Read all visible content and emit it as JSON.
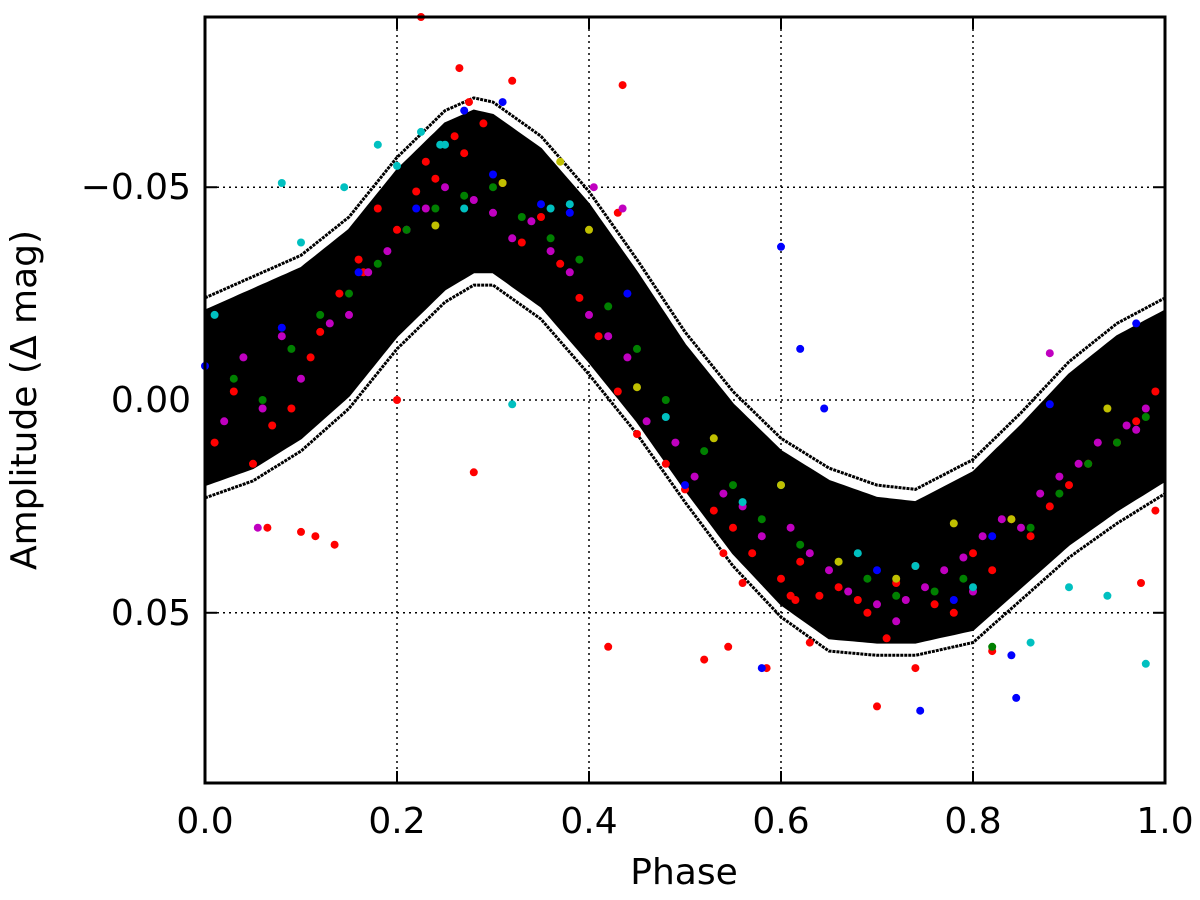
{
  "chart_data": {
    "type": "scatter",
    "title": "",
    "xlabel": "Phase",
    "ylabel": "Amplitude (Δ mag)",
    "xlim": [
      0.0,
      1.0
    ],
    "ylim": [
      0.09,
      -0.09
    ],
    "y_inverted": true,
    "grid": true,
    "grid_style": "dotted",
    "x_ticks": [
      0.0,
      0.2,
      0.4,
      0.6,
      0.8,
      1.0
    ],
    "x_tick_labels": [
      "0.0",
      "0.2",
      "0.4",
      "0.6",
      "0.8",
      "1.0"
    ],
    "y_ticks": [
      -0.05,
      0.0,
      0.05
    ],
    "y_tick_labels": [
      "−0.05",
      "0.00",
      "0.05"
    ],
    "model_band": {
      "description_color": "#000000",
      "center_curve": {
        "x": [
          0.0,
          0.05,
          0.1,
          0.15,
          0.2,
          0.25,
          0.28,
          0.3,
          0.35,
          0.4,
          0.45,
          0.5,
          0.55,
          0.6,
          0.65,
          0.7,
          0.74,
          0.8,
          0.85,
          0.9,
          0.95,
          1.0
        ],
        "y": [
          0.003,
          -0.002,
          -0.009,
          -0.019,
          -0.033,
          -0.045,
          -0.049,
          -0.048,
          -0.041,
          -0.029,
          -0.013,
          0.004,
          0.019,
          0.031,
          0.039,
          0.044,
          0.044,
          0.036,
          0.026,
          0.016,
          0.008,
          0.002
        ]
      },
      "half_width": 0.012,
      "outer_envelope_upper": {
        "x": [
          0.0,
          0.05,
          0.1,
          0.15,
          0.2,
          0.25,
          0.28,
          0.3,
          0.35,
          0.4,
          0.45,
          0.5,
          0.55,
          0.6,
          0.65,
          0.7,
          0.74,
          0.8,
          0.85,
          0.9,
          0.95,
          1.0
        ],
        "y": [
          -0.021,
          -0.026,
          -0.031,
          -0.04,
          -0.054,
          -0.065,
          -0.068,
          -0.067,
          -0.059,
          -0.046,
          -0.03,
          -0.013,
          0.001,
          0.012,
          0.019,
          0.023,
          0.024,
          0.017,
          0.006,
          -0.006,
          -0.015,
          -0.021
        ]
      },
      "outer_envelope_lower": {
        "x": [
          0.0,
          0.05,
          0.1,
          0.15,
          0.2,
          0.25,
          0.28,
          0.3,
          0.35,
          0.4,
          0.45,
          0.5,
          0.55,
          0.6,
          0.65,
          0.7,
          0.74,
          0.8,
          0.85,
          0.9,
          0.95,
          1.0
        ],
        "y": [
          0.02,
          0.016,
          0.009,
          -0.001,
          -0.015,
          -0.026,
          -0.03,
          -0.03,
          -0.022,
          -0.009,
          0.005,
          0.021,
          0.036,
          0.048,
          0.056,
          0.057,
          0.057,
          0.054,
          0.044,
          0.034,
          0.026,
          0.019
        ]
      }
    },
    "series": [
      {
        "color": "#ff0000",
        "x": [
          0.01,
          0.03,
          0.05,
          0.07,
          0.09,
          0.11,
          0.12,
          0.14,
          0.16,
          0.18,
          0.2,
          0.22,
          0.23,
          0.24,
          0.26,
          0.27,
          0.29,
          0.31,
          0.33,
          0.35,
          0.37,
          0.39,
          0.41,
          0.43,
          0.45,
          0.48,
          0.5,
          0.53,
          0.55,
          0.57,
          0.6,
          0.62,
          0.64,
          0.66,
          0.68,
          0.69,
          0.71,
          0.72,
          0.74,
          0.76,
          0.78,
          0.8,
          0.82,
          0.84,
          0.86,
          0.88,
          0.9,
          0.92,
          0.95,
          0.97,
          0.99,
          0.065,
          0.1,
          0.115,
          0.135,
          0.165,
          0.225,
          0.265,
          0.275,
          0.32,
          0.435,
          0.43,
          0.28,
          0.2,
          0.42,
          0.54,
          0.56,
          0.585,
          0.615,
          0.7,
          0.74,
          0.63,
          0.52,
          0.545,
          0.975,
          0.99,
          0.82,
          0.61
        ],
        "y": [
          0.01,
          -0.002,
          0.015,
          0.006,
          0.002,
          -0.01,
          -0.016,
          -0.025,
          -0.033,
          -0.045,
          -0.04,
          -0.049,
          -0.056,
          -0.052,
          -0.062,
          -0.058,
          -0.065,
          -0.051,
          -0.037,
          -0.043,
          -0.032,
          -0.024,
          -0.015,
          -0.002,
          0.008,
          0.015,
          0.021,
          0.026,
          0.03,
          0.036,
          0.042,
          0.038,
          0.046,
          0.044,
          0.047,
          0.05,
          0.056,
          0.043,
          0.039,
          0.048,
          0.05,
          0.036,
          0.04,
          0.028,
          0.032,
          0.025,
          0.02,
          0.015,
          0.01,
          0.005,
          -0.002,
          0.03,
          0.031,
          0.032,
          0.034,
          -0.03,
          -0.09,
          -0.078,
          -0.07,
          -0.075,
          -0.074,
          -0.044,
          0.017,
          0.0,
          0.058,
          0.036,
          0.043,
          0.063,
          0.047,
          0.072,
          0.063,
          0.057,
          0.061,
          0.058,
          0.043,
          0.026,
          0.059,
          0.046
        ]
      },
      {
        "color": "#c000c0",
        "x": [
          0.02,
          0.04,
          0.06,
          0.08,
          0.1,
          0.13,
          0.15,
          0.17,
          0.19,
          0.21,
          0.23,
          0.25,
          0.28,
          0.3,
          0.32,
          0.34,
          0.36,
          0.38,
          0.4,
          0.42,
          0.44,
          0.46,
          0.49,
          0.51,
          0.54,
          0.56,
          0.58,
          0.61,
          0.63,
          0.65,
          0.67,
          0.7,
          0.73,
          0.75,
          0.77,
          0.79,
          0.81,
          0.83,
          0.85,
          0.87,
          0.89,
          0.91,
          0.93,
          0.96,
          0.98,
          0.055,
          0.405,
          0.435,
          0.8,
          0.88,
          0.72,
          0.97
        ],
        "y": [
          0.005,
          -0.01,
          0.002,
          -0.015,
          -0.005,
          -0.018,
          -0.02,
          -0.03,
          -0.035,
          -0.04,
          -0.045,
          -0.05,
          -0.047,
          -0.044,
          -0.038,
          -0.042,
          -0.035,
          -0.03,
          -0.02,
          -0.015,
          -0.01,
          0.005,
          0.01,
          0.018,
          0.022,
          0.025,
          0.032,
          0.03,
          0.036,
          0.04,
          0.045,
          0.048,
          0.047,
          0.044,
          0.04,
          0.037,
          0.032,
          0.028,
          0.03,
          0.022,
          0.018,
          0.015,
          0.01,
          0.006,
          0.002,
          0.03,
          -0.05,
          -0.045,
          0.045,
          -0.011,
          0.052,
          0.007
        ]
      },
      {
        "color": "#008000",
        "x": [
          0.03,
          0.06,
          0.09,
          0.12,
          0.15,
          0.18,
          0.21,
          0.24,
          0.27,
          0.3,
          0.33,
          0.36,
          0.39,
          0.42,
          0.45,
          0.48,
          0.52,
          0.55,
          0.58,
          0.62,
          0.66,
          0.69,
          0.72,
          0.76,
          0.79,
          0.82,
          0.86,
          0.89,
          0.92,
          0.95,
          0.98
        ],
        "y": [
          -0.005,
          0.0,
          -0.012,
          -0.02,
          -0.025,
          -0.032,
          -0.04,
          -0.045,
          -0.048,
          -0.05,
          -0.043,
          -0.038,
          -0.033,
          -0.022,
          -0.012,
          0.0,
          0.012,
          0.02,
          0.028,
          0.034,
          0.038,
          0.042,
          0.046,
          0.045,
          0.042,
          0.058,
          0.03,
          0.022,
          0.015,
          0.01,
          0.004
        ]
      },
      {
        "color": "#0000ff",
        "x": [
          0.0,
          0.08,
          0.16,
          0.22,
          0.27,
          0.3,
          0.31,
          0.35,
          0.38,
          0.44,
          0.5,
          0.6,
          0.62,
          0.645,
          0.7,
          0.745,
          0.78,
          0.82,
          0.84,
          0.845,
          0.88,
          0.97,
          0.58
        ],
        "y": [
          -0.008,
          -0.017,
          -0.03,
          -0.045,
          -0.068,
          -0.053,
          -0.07,
          -0.046,
          -0.044,
          -0.025,
          0.02,
          -0.036,
          -0.012,
          0.002,
          0.04,
          0.073,
          0.047,
          0.032,
          0.06,
          0.07,
          0.001,
          -0.018,
          0.063
        ]
      },
      {
        "color": "#00c0c0",
        "x": [
          0.01,
          0.08,
          0.1,
          0.145,
          0.18,
          0.2,
          0.225,
          0.245,
          0.25,
          0.27,
          0.32,
          0.36,
          0.38,
          0.48,
          0.56,
          0.6,
          0.68,
          0.74,
          0.8,
          0.86,
          0.9,
          0.94,
          0.98
        ],
        "y": [
          -0.02,
          -0.051,
          -0.037,
          -0.05,
          -0.06,
          -0.055,
          -0.063,
          -0.06,
          -0.06,
          -0.045,
          0.001,
          -0.045,
          -0.046,
          0.004,
          0.024,
          0.02,
          0.036,
          0.039,
          0.044,
          0.057,
          0.044,
          0.046,
          0.062
        ]
      },
      {
        "color": "#c0c000",
        "x": [
          0.24,
          0.31,
          0.37,
          0.4,
          0.45,
          0.53,
          0.6,
          0.66,
          0.72,
          0.78,
          0.84,
          0.94
        ],
        "y": [
          -0.041,
          -0.051,
          -0.056,
          -0.04,
          -0.003,
          0.009,
          0.02,
          0.038,
          0.042,
          0.029,
          0.028,
          0.002
        ]
      }
    ]
  }
}
